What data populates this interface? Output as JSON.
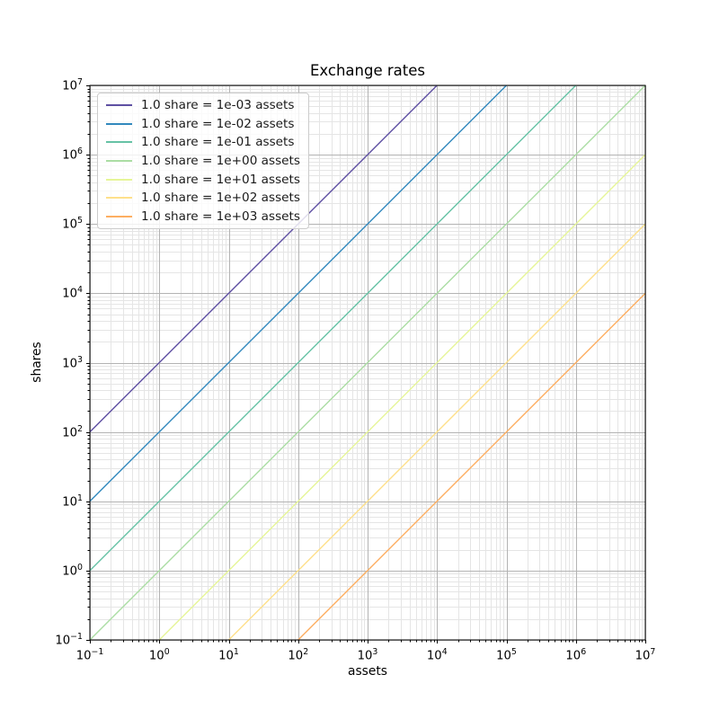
{
  "chart_data": {
    "type": "line",
    "title": "Exchange rates",
    "xlabel": "assets",
    "ylabel": "shares",
    "xscale": "log",
    "yscale": "log",
    "xlim": [
      0.1,
      10000000
    ],
    "ylim": [
      0.1,
      10000000
    ],
    "x_tick_exponents": [
      -1,
      0,
      1,
      2,
      3,
      4,
      5,
      6,
      7
    ],
    "y_tick_exponents": [
      -1,
      0,
      1,
      2,
      3,
      4,
      5,
      6,
      7
    ],
    "grid": {
      "which": "both",
      "major_color": "#b3b3b3",
      "minor_color": "#e5e5e5"
    },
    "legend_location": "upper left",
    "spine_color": "#000000",
    "series": [
      {
        "label": "1.0 share = 1e-03 assets",
        "assets_per_share": 0.001,
        "color": "#5e4fa2",
        "points": [
          [
            0.1,
            100
          ],
          [
            10000,
            10000000
          ]
        ]
      },
      {
        "label": "1.0 share = 1e-02 assets",
        "assets_per_share": 0.01,
        "color": "#3288bd",
        "points": [
          [
            0.1,
            10
          ],
          [
            100000,
            10000000
          ]
        ]
      },
      {
        "label": "1.0 share = 1e-01 assets",
        "assets_per_share": 0.1,
        "color": "#66c2a5",
        "points": [
          [
            0.1,
            1
          ],
          [
            1000000,
            10000000
          ]
        ]
      },
      {
        "label": "1.0 share = 1e+00 assets",
        "assets_per_share": 1,
        "color": "#abdda4",
        "points": [
          [
            0.1,
            0.1
          ],
          [
            10000000,
            10000000
          ]
        ]
      },
      {
        "label": "1.0 share = 1e+01 assets",
        "assets_per_share": 10,
        "color": "#e6f598",
        "points": [
          [
            1,
            0.1
          ],
          [
            10000000,
            1000000
          ]
        ]
      },
      {
        "label": "1.0 share = 1e+02 assets",
        "assets_per_share": 100,
        "color": "#fee08b",
        "points": [
          [
            10,
            0.1
          ],
          [
            10000000,
            100000
          ]
        ]
      },
      {
        "label": "1.0 share = 1e+03 assets",
        "assets_per_share": 1000,
        "color": "#fdae61",
        "points": [
          [
            100,
            0.1
          ],
          [
            10000000,
            10000
          ]
        ]
      }
    ]
  }
}
